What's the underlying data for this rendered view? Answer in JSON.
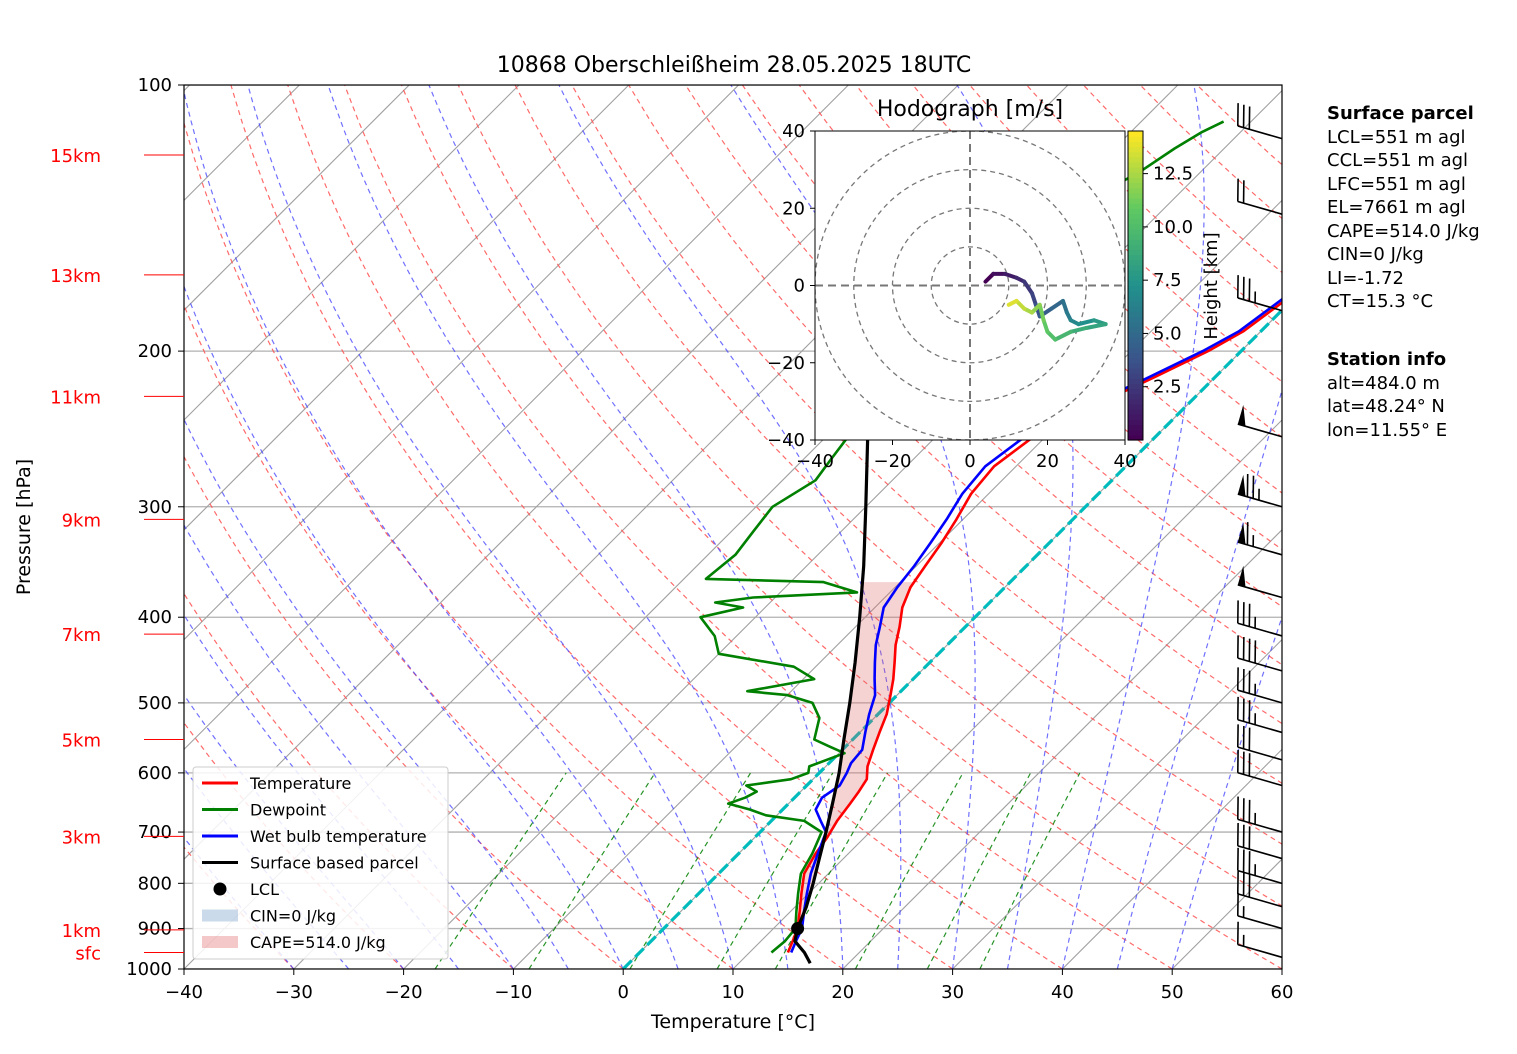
{
  "chart_data": {
    "type": "skew-t",
    "title": "10868 Oberschleißheim 28.05.2025 18UTC",
    "xlabel": "Temperature [°C]",
    "ylabel": "Pressure [hPa]",
    "xlim": [
      -40,
      60
    ],
    "ylim": [
      1000,
      100
    ],
    "x_ticks": [
      -40,
      -30,
      -20,
      -10,
      0,
      10,
      20,
      30,
      40,
      50,
      60
    ],
    "y_ticks": [
      100,
      200,
      300,
      400,
      500,
      600,
      700,
      800,
      900,
      1000
    ],
    "height_labels": [
      {
        "label": "sfc",
        "p": 958
      },
      {
        "label": "1km",
        "p": 903
      },
      {
        "label": "3km",
        "p": 708
      },
      {
        "label": "5km",
        "p": 550
      },
      {
        "label": "7km",
        "p": 418
      },
      {
        "label": "9km",
        "p": 310
      },
      {
        "label": "11km",
        "p": 225
      },
      {
        "label": "13km",
        "p": 164
      },
      {
        "label": "15km",
        "p": 120
      }
    ],
    "series": [
      {
        "name": "Temperature",
        "color": "#ff0000",
        "points": [
          [
            13.5,
            958
          ],
          [
            12.9,
            930
          ],
          [
            12.2,
            900
          ],
          [
            10.8,
            860
          ],
          [
            9.3,
            820
          ],
          [
            7.8,
            780
          ],
          [
            7.0,
            740
          ],
          [
            6.6,
            710
          ],
          [
            6.0,
            680
          ],
          [
            5.6,
            650
          ],
          [
            5.3,
            630
          ],
          [
            4.9,
            610
          ],
          [
            3.8,
            590
          ],
          [
            2.8,
            565
          ],
          [
            1.8,
            540
          ],
          [
            0.8,
            515
          ],
          [
            -0.6,
            490
          ],
          [
            -1.8,
            470
          ],
          [
            -3.2,
            450
          ],
          [
            -4.7,
            430
          ],
          [
            -6.0,
            410
          ],
          [
            -7.5,
            390
          ],
          [
            -8.6,
            370
          ],
          [
            -9.2,
            350
          ],
          [
            -9.8,
            330
          ],
          [
            -10.6,
            310
          ],
          [
            -11.6,
            290
          ],
          [
            -12.0,
            270
          ],
          [
            -11.2,
            252
          ],
          [
            -9.5,
            240
          ],
          [
            -8.0,
            228
          ],
          [
            -5.5,
            214
          ],
          [
            -3.0,
            200
          ],
          [
            -1.6,
            190
          ],
          [
            -0.6,
            175
          ],
          [
            0.5,
            160
          ],
          [
            2.2,
            150
          ],
          [
            3.8,
            140
          ],
          [
            4.8,
            132
          ],
          [
            5.5,
            125
          ],
          [
            6.0,
            118
          ],
          [
            6.8,
            113
          ],
          [
            7.6,
            110
          ]
        ]
      },
      {
        "name": "Dewpoint",
        "color": "#008000",
        "points": [
          [
            12.0,
            958
          ],
          [
            12.2,
            930
          ],
          [
            12.0,
            900
          ],
          [
            10.5,
            860
          ],
          [
            9.0,
            820
          ],
          [
            7.5,
            780
          ],
          [
            6.7,
            740
          ],
          [
            5.6,
            700
          ],
          [
            3.0,
            680
          ],
          [
            -1.0,
            670
          ],
          [
            -3.0,
            660
          ],
          [
            -5.5,
            650
          ],
          [
            -4.5,
            640
          ],
          [
            -4.0,
            630
          ],
          [
            -5.5,
            620
          ],
          [
            -2.0,
            610
          ],
          [
            -1.0,
            600
          ],
          [
            -1.5,
            590
          ],
          [
            0.5,
            570
          ],
          [
            -1.5,
            560
          ],
          [
            -3.5,
            550
          ],
          [
            -5.0,
            520
          ],
          [
            -7.0,
            500
          ],
          [
            -10.0,
            490
          ],
          [
            -14.0,
            485
          ],
          [
            -9.0,
            470
          ],
          [
            -12.0,
            455
          ],
          [
            -20.0,
            440
          ],
          [
            -22.0,
            420
          ],
          [
            -25.0,
            400
          ],
          [
            -22.0,
            390
          ],
          [
            -25.0,
            385
          ],
          [
            -22.0,
            380
          ],
          [
            -13.0,
            375
          ],
          [
            -17.0,
            365
          ],
          [
            -28.0,
            362
          ],
          [
            -27.5,
            340
          ],
          [
            -28.0,
            320
          ],
          [
            -28.5,
            300
          ],
          [
            -27.0,
            280
          ],
          [
            -27.5,
            265
          ],
          [
            -28.0,
            250
          ],
          [
            -30.0,
            240
          ],
          [
            -30.5,
            230
          ],
          [
            -31.5,
            220
          ],
          [
            -32.0,
            210
          ],
          [
            -33.0,
            200
          ],
          [
            -33.0,
            190
          ],
          [
            -32.5,
            180
          ],
          [
            -32.0,
            170
          ],
          [
            -31.0,
            160
          ],
          [
            -30.0,
            150
          ],
          [
            -28.5,
            140
          ],
          [
            -27.0,
            132
          ],
          [
            -25.5,
            125
          ],
          [
            -24.5,
            118
          ],
          [
            -23.5,
            113
          ],
          [
            -22.5,
            110
          ]
        ]
      },
      {
        "name": "Wet bulb temperature",
        "color": "#0000ff",
        "points": [
          [
            13.8,
            958
          ],
          [
            13.2,
            930
          ],
          [
            12.6,
            900
          ],
          [
            11.2,
            860
          ],
          [
            9.8,
            820
          ],
          [
            8.4,
            780
          ],
          [
            7.2,
            740
          ],
          [
            6.0,
            700
          ],
          [
            4.5,
            680
          ],
          [
            3.0,
            660
          ],
          [
            2.5,
            640
          ],
          [
            3.0,
            620
          ],
          [
            2.5,
            600
          ],
          [
            2.0,
            585
          ],
          [
            1.8,
            565
          ],
          [
            0.5,
            540
          ],
          [
            -0.8,
            515
          ],
          [
            -2.0,
            490
          ],
          [
            -3.5,
            470
          ],
          [
            -5.0,
            450
          ],
          [
            -6.5,
            430
          ],
          [
            -7.8,
            410
          ],
          [
            -9.2,
            390
          ],
          [
            -9.8,
            370
          ],
          [
            -10.2,
            350
          ],
          [
            -10.8,
            330
          ],
          [
            -11.5,
            310
          ],
          [
            -12.4,
            290
          ],
          [
            -12.8,
            270
          ],
          [
            -12.0,
            252
          ],
          [
            -10.0,
            240
          ],
          [
            -8.5,
            228
          ],
          [
            -6.0,
            214
          ],
          [
            -3.5,
            200
          ],
          [
            -2.0,
            190
          ],
          [
            -1.0,
            175
          ],
          [
            0.0,
            160
          ],
          [
            1.8,
            150
          ],
          [
            3.5,
            140
          ],
          [
            4.5,
            132
          ],
          [
            5.2,
            125
          ],
          [
            5.8,
            118
          ],
          [
            6.6,
            113
          ],
          [
            7.4,
            110
          ]
        ]
      },
      {
        "name": "Surface based parcel",
        "color": "#000000",
        "points": [
          [
            16.5,
            985
          ],
          [
            15.0,
            958
          ],
          [
            13.1,
            930
          ],
          [
            12.2,
            900
          ],
          [
            11.0,
            850
          ],
          [
            9.5,
            800
          ],
          [
            7.8,
            750
          ],
          [
            6.0,
            700
          ],
          [
            4.0,
            650
          ],
          [
            1.8,
            600
          ],
          [
            -0.8,
            550
          ],
          [
            -3.6,
            500
          ],
          [
            -6.8,
            450
          ],
          [
            -10.5,
            400
          ],
          [
            -14.8,
            350
          ],
          [
            -20.0,
            300
          ],
          [
            -26.2,
            250
          ],
          [
            -33.5,
            200
          ],
          [
            -37.0,
            180
          ],
          [
            -40.5,
            160
          ],
          [
            -44.5,
            140
          ],
          [
            -49.0,
            120
          ]
        ]
      }
    ],
    "lcl": {
      "name": "LCL",
      "p": 900,
      "t": 12.2
    },
    "legend": [
      "Temperature",
      "Dewpoint",
      "Wet bulb temperature",
      "Surface based parcel",
      "LCL",
      "CIN=0 J/kg",
      "CAPE=514.0 J/kg"
    ],
    "legend_position": "lower-left",
    "freezing_line_color": "#00bbbb",
    "hodograph": {
      "title": "Hodograph [m/s]",
      "xlim": [
        -40,
        40
      ],
      "ylim": [
        -40,
        40
      ],
      "ticks": [
        -40,
        -20,
        0,
        20,
        40
      ],
      "rings": [
        10,
        20,
        30,
        40
      ],
      "colorbar_label": "Height [km]",
      "colorbar_ticks": [
        2.5,
        5.0,
        7.5,
        10.0,
        12.5
      ],
      "colorbar_range": [
        0,
        14.5
      ],
      "points": [
        [
          4,
          1,
          0.0
        ],
        [
          6,
          3,
          0.6
        ],
        [
          9,
          3,
          1.2
        ],
        [
          12,
          2,
          1.8
        ],
        [
          14,
          1,
          2.4
        ],
        [
          16,
          -2,
          3.0
        ],
        [
          17,
          -5,
          3.6
        ],
        [
          18,
          -8,
          4.2
        ],
        [
          21,
          -6,
          4.8
        ],
        [
          24,
          -4,
          5.4
        ],
        [
          25,
          -7,
          6.0
        ],
        [
          26,
          -9,
          6.6
        ],
        [
          28,
          -10,
          7.2
        ],
        [
          32,
          -9,
          7.8
        ],
        [
          35,
          -10,
          8.4
        ],
        [
          30,
          -11,
          9.0
        ],
        [
          26,
          -12,
          9.6
        ],
        [
          22,
          -14,
          10.2
        ],
        [
          20,
          -12,
          10.8
        ],
        [
          19,
          -9,
          11.4
        ],
        [
          18,
          -5,
          12.0
        ],
        [
          16,
          -7,
          12.6
        ],
        [
          14,
          -6,
          13.2
        ],
        [
          12,
          -4,
          13.8
        ],
        [
          10,
          -5,
          14.4
        ]
      ]
    },
    "wind_barbs": [
      {
        "p": 970,
        "speed": 15
      },
      {
        "p": 900,
        "speed": 15
      },
      {
        "p": 850,
        "speed": 30
      },
      {
        "p": 800,
        "speed": 35
      },
      {
        "p": 750,
        "speed": 30
      },
      {
        "p": 700,
        "speed": 35
      },
      {
        "p": 620,
        "speed": 30
      },
      {
        "p": 580,
        "speed": 30
      },
      {
        "p": 540,
        "speed": 35
      },
      {
        "p": 500,
        "speed": 35
      },
      {
        "p": 460,
        "speed": 40
      },
      {
        "p": 420,
        "speed": 35
      },
      {
        "p": 380,
        "speed": 50
      },
      {
        "p": 340,
        "speed": 65
      },
      {
        "p": 300,
        "speed": 75
      },
      {
        "p": 250,
        "speed": 50
      },
      {
        "p": 180,
        "speed": 35
      },
      {
        "p": 140,
        "speed": 20
      },
      {
        "p": 115,
        "speed": 30
      }
    ]
  },
  "surface_parcel": {
    "header": "Surface parcel",
    "lines": [
      "LCL=551 m agl",
      "CCL=551 m agl",
      "LFC=551 m agl",
      "EL=7661 m agl",
      "CAPE=514.0 J/kg",
      "CIN=0 J/kg",
      "LI=-1.72",
      "CT=15.3 °C"
    ]
  },
  "station_info": {
    "header": "Station info",
    "lines": [
      "alt=484.0 m",
      "lat=48.24° N",
      "lon=11.55° E"
    ]
  }
}
